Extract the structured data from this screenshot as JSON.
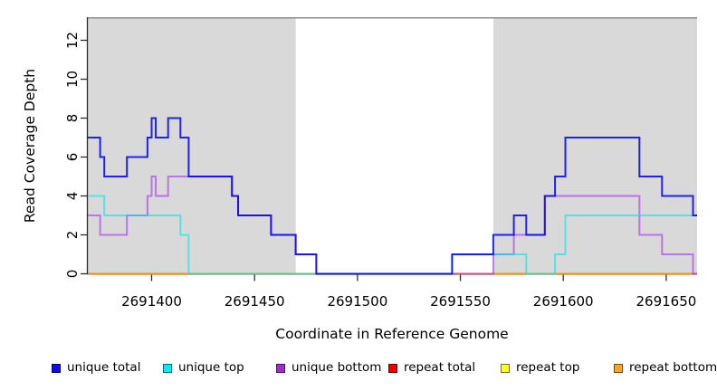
{
  "chart_data": {
    "type": "line",
    "subtype": "step",
    "title": "",
    "xlabel": "Coordinate in Reference Genome",
    "ylabel": "Read Coverage Depth",
    "xlim": [
      2691369,
      2691665
    ],
    "ylim": [
      0,
      13.2
    ],
    "x_ticks": [
      2691400,
      2691450,
      2691500,
      2691550,
      2691600,
      2691650
    ],
    "y_ticks": [
      0,
      2,
      4,
      6,
      8,
      10,
      12
    ],
    "grid": false,
    "legend_position": "bottom",
    "plot_bg": "#ffffff",
    "shade_color": "#d9d9d9",
    "top_rule_color": "#8c8c8c",
    "shaded_regions": [
      {
        "x0": 2691369,
        "x1": 2691470
      },
      {
        "x0": 2691566,
        "x1": 2691665
      }
    ],
    "series": [
      {
        "name": "unique total",
        "color": "#0000ee",
        "opacity": 0.85,
        "steps": [
          [
            2691369,
            7
          ],
          [
            2691375,
            6
          ],
          [
            2691377,
            5
          ],
          [
            2691388,
            6
          ],
          [
            2691398,
            7
          ],
          [
            2691400,
            8
          ],
          [
            2691402,
            7
          ],
          [
            2691408,
            8
          ],
          [
            2691414,
            7
          ],
          [
            2691418,
            5
          ],
          [
            2691439,
            4
          ],
          [
            2691442,
            3
          ],
          [
            2691458,
            2
          ],
          [
            2691470,
            1
          ],
          [
            2691480,
            0
          ],
          [
            2691546,
            1
          ],
          [
            2691566,
            2
          ],
          [
            2691576,
            3
          ],
          [
            2691582,
            2
          ],
          [
            2691591,
            4
          ],
          [
            2691596,
            5
          ],
          [
            2691601,
            7
          ],
          [
            2691637,
            5
          ],
          [
            2691648,
            4
          ],
          [
            2691663,
            3
          ],
          [
            2691665,
            3
          ]
        ]
      },
      {
        "name": "unique top",
        "color": "#00e8e8",
        "opacity": 0.6,
        "steps": [
          [
            2691369,
            4
          ],
          [
            2691377,
            3
          ],
          [
            2691414,
            2
          ],
          [
            2691418,
            0
          ],
          [
            2691546,
            1
          ],
          [
            2691582,
            0
          ],
          [
            2691596,
            1
          ],
          [
            2691601,
            3
          ],
          [
            2691665,
            3
          ]
        ]
      },
      {
        "name": "unique bottom",
        "color": "#a020f0",
        "opacity": 0.55,
        "steps": [
          [
            2691369,
            3
          ],
          [
            2691375,
            2
          ],
          [
            2691388,
            3
          ],
          [
            2691398,
            4
          ],
          [
            2691400,
            5
          ],
          [
            2691402,
            4
          ],
          [
            2691408,
            5
          ],
          [
            2691439,
            4
          ],
          [
            2691442,
            3
          ],
          [
            2691458,
            2
          ],
          [
            2691470,
            1
          ],
          [
            2691480,
            0
          ],
          [
            2691566,
            1
          ],
          [
            2691576,
            2
          ],
          [
            2691591,
            4
          ],
          [
            2691637,
            2
          ],
          [
            2691648,
            1
          ],
          [
            2691663,
            0
          ],
          [
            2691665,
            0
          ]
        ]
      },
      {
        "name": "repeat total",
        "color": "#ee0000",
        "opacity": 1,
        "steps": [
          [
            2691369,
            0
          ],
          [
            2691665,
            0
          ]
        ]
      },
      {
        "name": "repeat top",
        "color": "#ffff00",
        "opacity": 1,
        "steps": [
          [
            2691369,
            0
          ],
          [
            2691665,
            0
          ]
        ]
      },
      {
        "name": "repeat bottom",
        "color": "#ff9100",
        "opacity": 1,
        "steps": [
          [
            2691369,
            0
          ],
          [
            2691665,
            0
          ]
        ]
      }
    ]
  },
  "legend": {
    "items": [
      {
        "label": "unique total",
        "color": "#0d0dee"
      },
      {
        "label": "unique top",
        "color": "#00f0f0"
      },
      {
        "label": "unique bottom",
        "color": "#9b2fd3"
      },
      {
        "label": "repeat total",
        "color": "#f00000"
      },
      {
        "label": "repeat top",
        "color": "#ffff2e"
      },
      {
        "label": "repeat bottom",
        "color": "#ffa520"
      }
    ]
  }
}
